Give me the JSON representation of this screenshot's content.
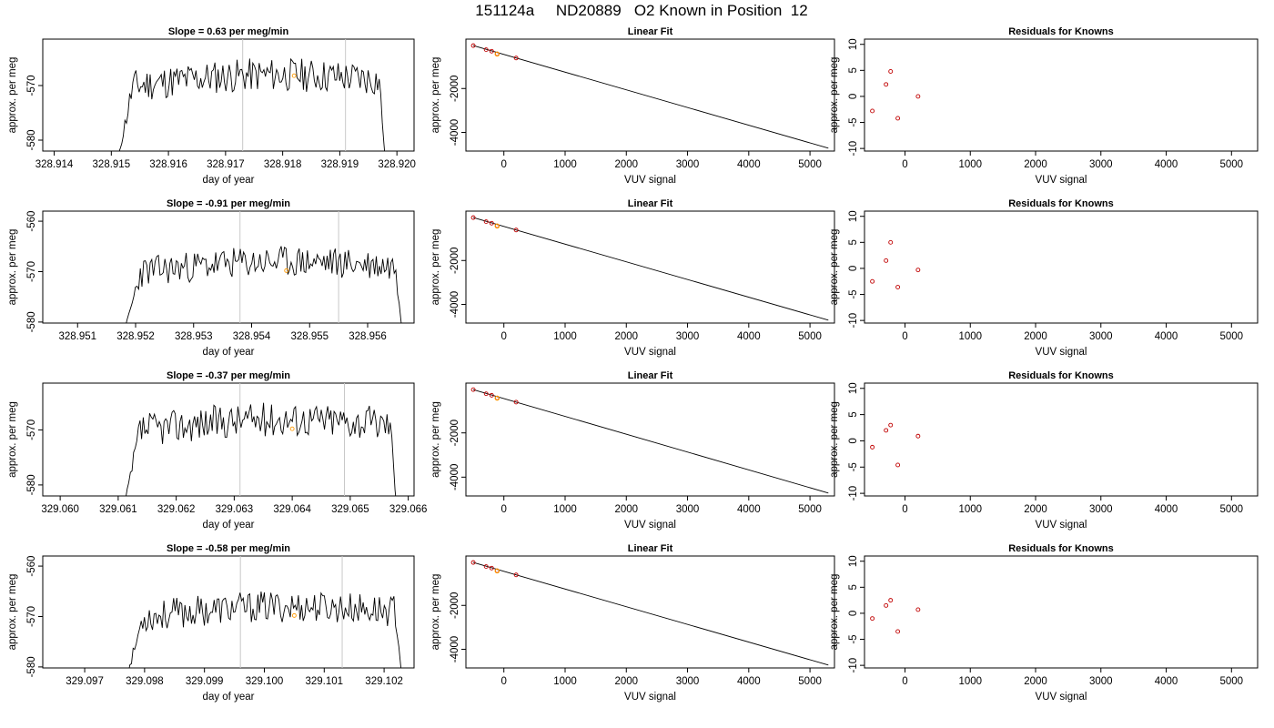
{
  "main_title": "151124a     ND20889   O2 Known in Position  12",
  "chart_data": [
    {
      "type": "line",
      "title": "Slope =  0.63  per meg/min",
      "xlabel": "day of year",
      "ylabel": "approx. per meg",
      "xlim": [
        328.9138,
        328.9203
      ],
      "ylim": [
        -582,
        -561.5
      ],
      "xticks": [
        "328.914",
        "328.915",
        "328.916",
        "328.917",
        "328.918",
        "328.919",
        "328.920"
      ],
      "yticks": [
        "-570",
        "-580"
      ],
      "vlines": [
        328.9173,
        328.9191
      ],
      "highlight_point": {
        "x": 328.9182,
        "y": -568.2
      },
      "line_start": 328.9151,
      "line_end": 328.9198,
      "seed": 11
    },
    {
      "type": "scatter_fit",
      "title": "Linear Fit",
      "xlabel": "VUV signal",
      "ylabel": "approx. per meg",
      "xlim": [
        -620,
        5400
      ],
      "ylim": [
        -4850,
        250
      ],
      "xticks": [
        "0",
        "1000",
        "2000",
        "3000",
        "4000",
        "5000"
      ],
      "yticks": [
        "-2000",
        "-4000"
      ],
      "fit_line": [
        [
          -500,
          -45
        ],
        [
          5300,
          -4720
        ]
      ],
      "points": [
        {
          "x": -500,
          "y": -45
        },
        {
          "x": -290,
          "y": -230
        },
        {
          "x": -200,
          "y": -300
        },
        {
          "x": -110,
          "y": -420
        },
        {
          "x": 200,
          "y": -610
        }
      ],
      "orange_points": [
        {
          "x": -110,
          "y": -430
        }
      ]
    },
    {
      "type": "scatter",
      "title": "Residuals for Knowns",
      "xlabel": "VUV signal",
      "ylabel": "",
      "xlim": [
        -620,
        5400
      ],
      "ylim": [
        -10.5,
        11
      ],
      "xticks": [
        "0",
        "1000",
        "2000",
        "3000",
        "4000",
        "5000"
      ],
      "yticks": [
        "10",
        "5",
        "0",
        "-5",
        "-10"
      ],
      "points": [
        {
          "x": -500,
          "y": -2.8
        },
        {
          "x": -290,
          "y": 2.3
        },
        {
          "x": -220,
          "y": 4.8
        },
        {
          "x": -110,
          "y": -4.2
        },
        {
          "x": 200,
          "y": 0.0
        }
      ]
    },
    {
      "type": "line",
      "title": "Slope =  -0.91  per meg/min",
      "xlabel": "day of year",
      "ylabel": "approx. per meg",
      "xlim": [
        328.9504,
        328.9568
      ],
      "ylim": [
        -580.2,
        -558
      ],
      "xticks": [
        "328.951",
        "328.952",
        "328.953",
        "328.954",
        "328.955",
        "328.956"
      ],
      "yticks": [
        "-560",
        "-570",
        "-580"
      ],
      "vlines": [
        328.9538,
        328.9555
      ],
      "highlight_point": {
        "x": 328.9546,
        "y": -569.8
      },
      "line_start": 328.9518,
      "line_end": 328.9566,
      "seed": 23
    },
    {
      "type": "scatter_fit",
      "title": "Linear Fit",
      "xlabel": "VUV signal",
      "ylabel": "approx. per meg",
      "xlim": [
        -620,
        5400
      ],
      "ylim": [
        -4850,
        250
      ],
      "xticks": [
        "0",
        "1000",
        "2000",
        "3000",
        "4000",
        "5000"
      ],
      "yticks": [
        "-2000",
        "-4000"
      ],
      "fit_line": [
        [
          -500,
          -45
        ],
        [
          5300,
          -4720
        ]
      ],
      "points": [
        {
          "x": -500,
          "y": -45
        },
        {
          "x": -290,
          "y": -230
        },
        {
          "x": -200,
          "y": -300
        },
        {
          "x": -110,
          "y": -420
        },
        {
          "x": 200,
          "y": -610
        }
      ],
      "orange_points": [
        {
          "x": -110,
          "y": -430
        }
      ]
    },
    {
      "type": "scatter",
      "title": "Residuals for Knowns",
      "xlabel": "VUV signal",
      "ylabel": "",
      "xlim": [
        -620,
        5400
      ],
      "ylim": [
        -10.5,
        11
      ],
      "xticks": [
        "0",
        "1000",
        "2000",
        "3000",
        "4000",
        "5000"
      ],
      "yticks": [
        "10",
        "5",
        "0",
        "-5",
        "-10"
      ],
      "points": [
        {
          "x": -500,
          "y": -2.5
        },
        {
          "x": -290,
          "y": 1.5
        },
        {
          "x": -220,
          "y": 5.0
        },
        {
          "x": -110,
          "y": -3.6
        },
        {
          "x": 200,
          "y": -0.3
        }
      ]
    },
    {
      "type": "line",
      "title": "Slope =  -0.37  per meg/min",
      "xlabel": "day of year",
      "ylabel": "approx. per meg",
      "xlim": [
        329.0597,
        329.0661
      ],
      "ylim": [
        -582,
        -561.5
      ],
      "xticks": [
        "329.060",
        "329.061",
        "329.062",
        "329.063",
        "329.064",
        "329.065",
        "329.066"
      ],
      "yticks": [
        "-570",
        "-580"
      ],
      "vlines": [
        329.0631,
        329.0649
      ],
      "highlight_point": {
        "x": 329.064,
        "y": -569.8
      },
      "line_start": 329.0611,
      "line_end": 329.0658,
      "seed": 37
    },
    {
      "type": "scatter_fit",
      "title": "Linear Fit",
      "xlabel": "VUV signal",
      "ylabel": "approx. per meg",
      "xlim": [
        -620,
        5400
      ],
      "ylim": [
        -4850,
        250
      ],
      "xticks": [
        "0",
        "1000",
        "2000",
        "3000",
        "4000",
        "5000"
      ],
      "yticks": [
        "-2000",
        "-4000"
      ],
      "fit_line": [
        [
          -500,
          -45
        ],
        [
          5300,
          -4720
        ]
      ],
      "points": [
        {
          "x": -500,
          "y": -45
        },
        {
          "x": -290,
          "y": -230
        },
        {
          "x": -200,
          "y": -300
        },
        {
          "x": -110,
          "y": -420
        },
        {
          "x": 200,
          "y": -610
        }
      ],
      "orange_points": [
        {
          "x": -110,
          "y": -430
        }
      ]
    },
    {
      "type": "scatter",
      "title": "Residuals for Knowns",
      "xlabel": "VUV signal",
      "ylabel": "",
      "xlim": [
        -620,
        5400
      ],
      "ylim": [
        -10.5,
        11
      ],
      "xticks": [
        "0",
        "1000",
        "2000",
        "3000",
        "4000",
        "5000"
      ],
      "yticks": [
        "10",
        "5",
        "0",
        "-5",
        "-10"
      ],
      "points": [
        {
          "x": -500,
          "y": -1.2
        },
        {
          "x": -290,
          "y": 2.0
        },
        {
          "x": -220,
          "y": 3.0
        },
        {
          "x": -110,
          "y": -4.6
        },
        {
          "x": 200,
          "y": 0.9
        }
      ]
    },
    {
      "type": "line",
      "title": "Slope =  -0.58  per meg/min",
      "xlabel": "day of year",
      "ylabel": "approx. per meg",
      "xlim": [
        329.0963,
        329.1025
      ],
      "ylim": [
        -580.2,
        -558
      ],
      "xticks": [
        "329.097",
        "329.098",
        "329.099",
        "329.100",
        "329.101",
        "329.102"
      ],
      "yticks": [
        "-560",
        "-570",
        "-580"
      ],
      "vlines": [
        329.0996,
        329.1013
      ],
      "highlight_point": {
        "x": 329.1005,
        "y": -569.8
      },
      "line_start": 329.0977,
      "line_end": 329.1023,
      "seed": 53
    },
    {
      "type": "scatter_fit",
      "title": "Linear Fit",
      "xlabel": "VUV signal",
      "ylabel": "approx. per meg",
      "xlim": [
        -620,
        5400
      ],
      "ylim": [
        -4850,
        250
      ],
      "xticks": [
        "0",
        "1000",
        "2000",
        "3000",
        "4000",
        "5000"
      ],
      "yticks": [
        "-2000",
        "-4000"
      ],
      "fit_line": [
        [
          -500,
          -45
        ],
        [
          5300,
          -4720
        ]
      ],
      "points": [
        {
          "x": -500,
          "y": -45
        },
        {
          "x": -290,
          "y": -230
        },
        {
          "x": -200,
          "y": -300
        },
        {
          "x": -110,
          "y": -420
        },
        {
          "x": 200,
          "y": -610
        }
      ],
      "orange_points": [
        {
          "x": -110,
          "y": -430
        }
      ]
    },
    {
      "type": "scatter",
      "title": "Residuals for Knowns",
      "xlabel": "VUV signal",
      "ylabel": "",
      "xlim": [
        -620,
        5400
      ],
      "ylim": [
        -10.5,
        11
      ],
      "xticks": [
        "0",
        "1000",
        "2000",
        "3000",
        "4000",
        "5000"
      ],
      "yticks": [
        "10",
        "5",
        "0",
        "-5",
        "-10"
      ],
      "points": [
        {
          "x": -500,
          "y": -1.0
        },
        {
          "x": -290,
          "y": 1.5
        },
        {
          "x": -220,
          "y": 2.5
        },
        {
          "x": -110,
          "y": -3.5
        },
        {
          "x": 200,
          "y": 0.7
        }
      ]
    }
  ],
  "colors": {
    "line": "#000000",
    "vline": "#c8c8c8",
    "highlight": "#ff9900",
    "residual": "#c00000",
    "fit_point": "#c00000"
  }
}
